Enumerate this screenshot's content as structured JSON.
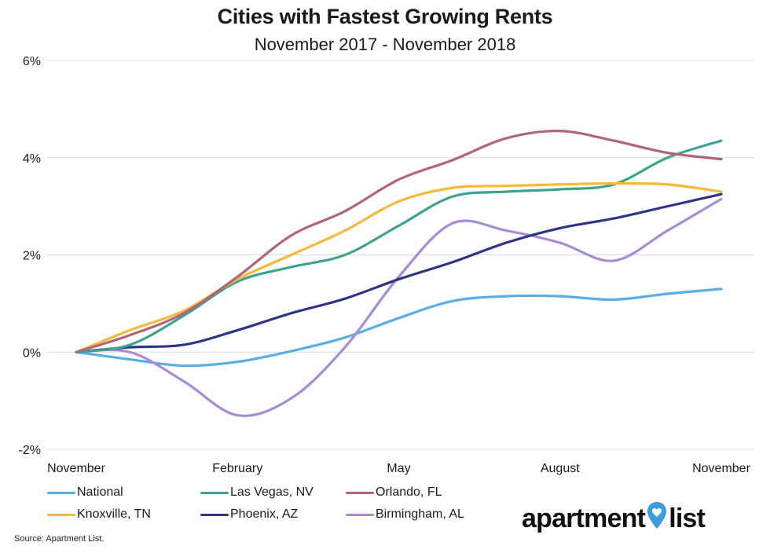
{
  "chart_data": {
    "type": "line",
    "title": "Cities with Fastest Growing Rents",
    "subtitle": "November 2017 - November 2018",
    "xlabel": "",
    "ylabel": "",
    "x": [
      "Nov 2017",
      "Dec 2017",
      "Jan 2018",
      "Feb 2018",
      "Mar 2018",
      "Apr 2018",
      "May 2018",
      "Jun 2018",
      "Jul 2018",
      "Aug 2018",
      "Sep 2018",
      "Oct 2018",
      "Nov 2018"
    ],
    "x_tick_labels": [
      {
        "label": "November",
        "index": 0
      },
      {
        "label": "February",
        "index": 3
      },
      {
        "label": "May",
        "index": 6
      },
      {
        "label": "August",
        "index": 9
      },
      {
        "label": "November",
        "index": 12
      }
    ],
    "y_tick_labels": [
      "-2%",
      "0%",
      "2%",
      "4%",
      "6%"
    ],
    "y_ticks": [
      -2,
      0,
      2,
      4,
      6
    ],
    "ylim": [
      -2,
      6
    ],
    "grid": "horizontal",
    "legend_position": "bottom",
    "series": [
      {
        "name": "National",
        "color": "#5aaee8",
        "values": [
          0,
          -0.15,
          -0.28,
          -0.2,
          0.02,
          0.3,
          0.7,
          1.05,
          1.15,
          1.15,
          1.08,
          1.2,
          1.3
        ]
      },
      {
        "name": "Las Vegas, NV",
        "color": "#3fa393",
        "values": [
          0,
          0.15,
          0.75,
          1.45,
          1.75,
          2.0,
          2.6,
          3.2,
          3.3,
          3.35,
          3.45,
          4.0,
          4.35
        ]
      },
      {
        "name": "Orlando, FL",
        "color": "#b06677",
        "values": [
          0,
          0.35,
          0.8,
          1.55,
          2.4,
          2.9,
          3.55,
          3.95,
          4.4,
          4.55,
          4.35,
          4.1,
          3.97
        ]
      },
      {
        "name": "Knoxville, TN",
        "color": "#f6b93b",
        "values": [
          0,
          0.45,
          0.85,
          1.5,
          2.0,
          2.5,
          3.1,
          3.38,
          3.42,
          3.45,
          3.47,
          3.45,
          3.3
        ]
      },
      {
        "name": "Phoenix, AZ",
        "color": "#2d3584",
        "values": [
          0,
          0.1,
          0.15,
          0.45,
          0.8,
          1.1,
          1.5,
          1.85,
          2.25,
          2.55,
          2.75,
          3.0,
          3.25
        ]
      },
      {
        "name": "Birmingham, AL",
        "color": "#a98bd5",
        "values": [
          0,
          0.0,
          -0.6,
          -1.3,
          -0.95,
          0.1,
          1.55,
          2.65,
          2.5,
          2.25,
          1.88,
          2.5,
          3.15
        ]
      }
    ]
  },
  "source": "Source: Apartment List.",
  "brand": {
    "left": "apartment",
    "right": "list",
    "pin_color": "#3d9be0",
    "icon": "map-pin-heart-icon"
  }
}
